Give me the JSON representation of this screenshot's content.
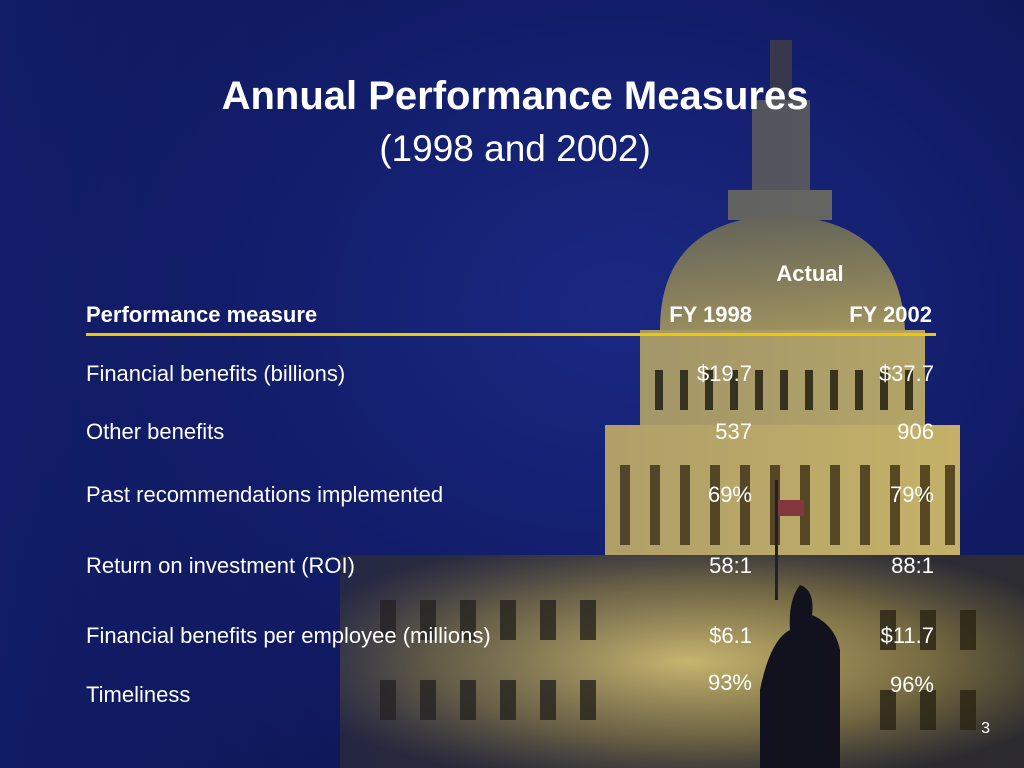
{
  "slide": {
    "title": "Annual Performance Measures",
    "subtitle": "(1998 and 2002)",
    "page_number": "3"
  },
  "table": {
    "group_header": "Actual",
    "headers": {
      "measure": "Performance measure",
      "fy1": "FY 1998",
      "fy2": "FY 2002"
    },
    "rows": [
      {
        "measure": "Financial benefits (billions)",
        "fy1": "$19.7",
        "fy2": "$37.7"
      },
      {
        "measure": "Other benefits",
        "fy1": "537",
        "fy2": "906"
      },
      {
        "measure": "Past recommendations implemented",
        "fy1": "69%",
        "fy2": "79%"
      },
      {
        "measure": "Return on investment (ROI)",
        "fy1": "58:1",
        "fy2": "88:1"
      },
      {
        "measure": "Financial benefits per employee (millions)",
        "fy1": "$6.1",
        "fy2": "$11.7"
      },
      {
        "measure": "Timeliness",
        "fy1": "93%",
        "fy2": "96%"
      }
    ]
  },
  "colors": {
    "background": "#121d6a",
    "rule": "#f0c800",
    "text": "#ffffff"
  }
}
